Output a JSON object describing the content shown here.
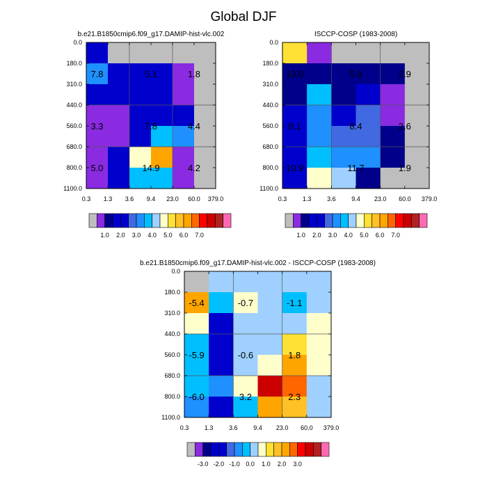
{
  "title": "Global DJF",
  "chart_data": [
    {
      "type": "heatmap",
      "title": "b.e21.B1850cmip6.f09_g17.DAMIP-hist-vlc.002",
      "x_ticks": [
        "0.3",
        "1.3",
        "3.6",
        "9.4",
        "23.0",
        "60.0",
        "379.0"
      ],
      "y_ticks": [
        "0.0",
        "180.0",
        "310.0",
        "440.0",
        "560.0",
        "680.0",
        "800.0",
        "1100.0"
      ],
      "cells_colorbar_index": [
        [
          3,
          0,
          0,
          0,
          0,
          0
        ],
        [
          6,
          3,
          3,
          3,
          1,
          0
        ],
        [
          3,
          3,
          3,
          3,
          1,
          0
        ],
        [
          1,
          1,
          3,
          4,
          3,
          0
        ],
        [
          1,
          1,
          4,
          7,
          6,
          0
        ],
        [
          1,
          4,
          9,
          12,
          1,
          0
        ],
        [
          1,
          4,
          7,
          7,
          1,
          0
        ]
      ],
      "annotations": [
        {
          "text": "7.8",
          "col": 0.5,
          "row": 1.5
        },
        {
          "text": "5.1",
          "col": 3.0,
          "row": 1.5
        },
        {
          "text": "1.8",
          "col": 5.0,
          "row": 1.5
        },
        {
          "text": "3.3",
          "col": 0.5,
          "row": 4.0
        },
        {
          "text": "7.8",
          "col": 3.0,
          "row": 4.0
        },
        {
          "text": "4.4",
          "col": 5.0,
          "row": 4.0
        },
        {
          "text": "5.0",
          "col": 0.5,
          "row": 6.0
        },
        {
          "text": "14.9",
          "col": 3.0,
          "row": 6.0
        },
        {
          "text": "4.2",
          "col": 5.0,
          "row": 6.0
        }
      ],
      "colorbar": {
        "colors": [
          "#bebebe",
          "#8a2be2",
          "#00008b",
          "#0000cd",
          "#0000cd",
          "#4169e1",
          "#1e90ff",
          "#00bfff",
          "#a0d0ff",
          "#ffffcc",
          "#ffe135",
          "#ffc125",
          "#ffa500",
          "#ff6600",
          "#ff0000",
          "#cc0000",
          "#b22222",
          "#ff69b4"
        ],
        "labels": [
          "1.0",
          "2.0",
          "3.0",
          "4.0",
          "5.0",
          "6.0",
          "7.0"
        ]
      }
    },
    {
      "type": "heatmap",
      "title": "ISCCP-COSP (1983-2008)",
      "x_ticks": [
        "0.3",
        "1.3",
        "3.6",
        "9.4",
        "23.0",
        "60.0",
        "379.0"
      ],
      "y_ticks": [
        "0.0",
        "180.0",
        "310.0",
        "440.0",
        "560.0",
        "680.0",
        "800.0",
        "1100.0"
      ],
      "cells_colorbar_index": [
        [
          10,
          1,
          0,
          0,
          0,
          0
        ],
        [
          2,
          2,
          2,
          2,
          2,
          0
        ],
        [
          2,
          7,
          2,
          3,
          1,
          0
        ],
        [
          3,
          6,
          3,
          5,
          1,
          0
        ],
        [
          3,
          6,
          5,
          5,
          2,
          0
        ],
        [
          3,
          7,
          6,
          6,
          2,
          0
        ],
        [
          3,
          9,
          8,
          2,
          0,
          0
        ]
      ],
      "annotations": [
        {
          "text": "13.0",
          "col": 0.5,
          "row": 1.5
        },
        {
          "text": "5.9",
          "col": 3.0,
          "row": 1.5
        },
        {
          "text": "2.9",
          "col": 5.0,
          "row": 1.5
        },
        {
          "text": "8.1",
          "col": 0.5,
          "row": 4.0
        },
        {
          "text": "8.4",
          "col": 3.0,
          "row": 4.0
        },
        {
          "text": "2.6",
          "col": 5.0,
          "row": 4.0
        },
        {
          "text": "10.9",
          "col": 0.5,
          "row": 6.0
        },
        {
          "text": "11.7",
          "col": 3.0,
          "row": 6.0
        },
        {
          "text": "1.9",
          "col": 5.0,
          "row": 6.0
        }
      ],
      "colorbar": {
        "colors": [
          "#bebebe",
          "#8a2be2",
          "#00008b",
          "#0000cd",
          "#0000cd",
          "#4169e1",
          "#1e90ff",
          "#00bfff",
          "#a0d0ff",
          "#ffffcc",
          "#ffe135",
          "#ffc125",
          "#ffa500",
          "#ff6600",
          "#ff0000",
          "#cc0000",
          "#b22222",
          "#ff69b4"
        ],
        "labels": [
          "1.0",
          "2.0",
          "3.0",
          "4.0",
          "5.0",
          "6.0",
          "7.0"
        ]
      }
    },
    {
      "type": "heatmap",
      "title": "b.e21.B1850cmip6.f09_g17.DAMIP-hist-vlc.002 - ISCCP-COSP (1983-2008)",
      "x_ticks": [
        "0.3",
        "1.3",
        "3.6",
        "9.4",
        "23.0",
        "60.0",
        "379.0"
      ],
      "y_ticks": [
        "0.0",
        "180.0",
        "310.0",
        "440.0",
        "560.0",
        "680.0",
        "800.0",
        "1100.0"
      ],
      "cells_colorbar_index": [
        [
          0,
          8,
          8,
          8,
          8,
          8
        ],
        [
          12,
          7,
          9,
          8,
          7,
          8
        ],
        [
          9,
          3,
          8,
          8,
          8,
          9
        ],
        [
          7,
          3,
          8,
          8,
          10,
          9
        ],
        [
          7,
          3,
          8,
          9,
          12,
          9
        ],
        [
          7,
          6,
          9,
          15,
          13,
          8
        ],
        [
          6,
          3,
          7,
          12,
          11,
          8
        ]
      ],
      "annotations": [
        {
          "text": "-5.4",
          "col": 0.5,
          "row": 1.5
        },
        {
          "text": "-0.7",
          "col": 2.5,
          "row": 1.5
        },
        {
          "text": "-1.1",
          "col": 4.5,
          "row": 1.5
        },
        {
          "text": "-5.9",
          "col": 0.5,
          "row": 4.0
        },
        {
          "text": "-0.6",
          "col": 2.5,
          "row": 4.0
        },
        {
          "text": "1.8",
          "col": 4.5,
          "row": 4.0
        },
        {
          "text": "-6.0",
          "col": 0.5,
          "row": 6.0
        },
        {
          "text": "3.2",
          "col": 2.5,
          "row": 6.0
        },
        {
          "text": "2.3",
          "col": 4.5,
          "row": 6.0
        }
      ],
      "colorbar": {
        "colors": [
          "#bebebe",
          "#8a2be2",
          "#00008b",
          "#0000cd",
          "#0000cd",
          "#4169e1",
          "#1e90ff",
          "#00bfff",
          "#a0d0ff",
          "#ffffcc",
          "#ffe135",
          "#ffc125",
          "#ffa500",
          "#ff6600",
          "#ff0000",
          "#cc0000",
          "#b22222",
          "#ff69b4"
        ],
        "labels": [
          "-3.0",
          "-2.0",
          "-1.0",
          "0.0",
          "1.0",
          "2.0",
          "3.0"
        ]
      }
    }
  ]
}
